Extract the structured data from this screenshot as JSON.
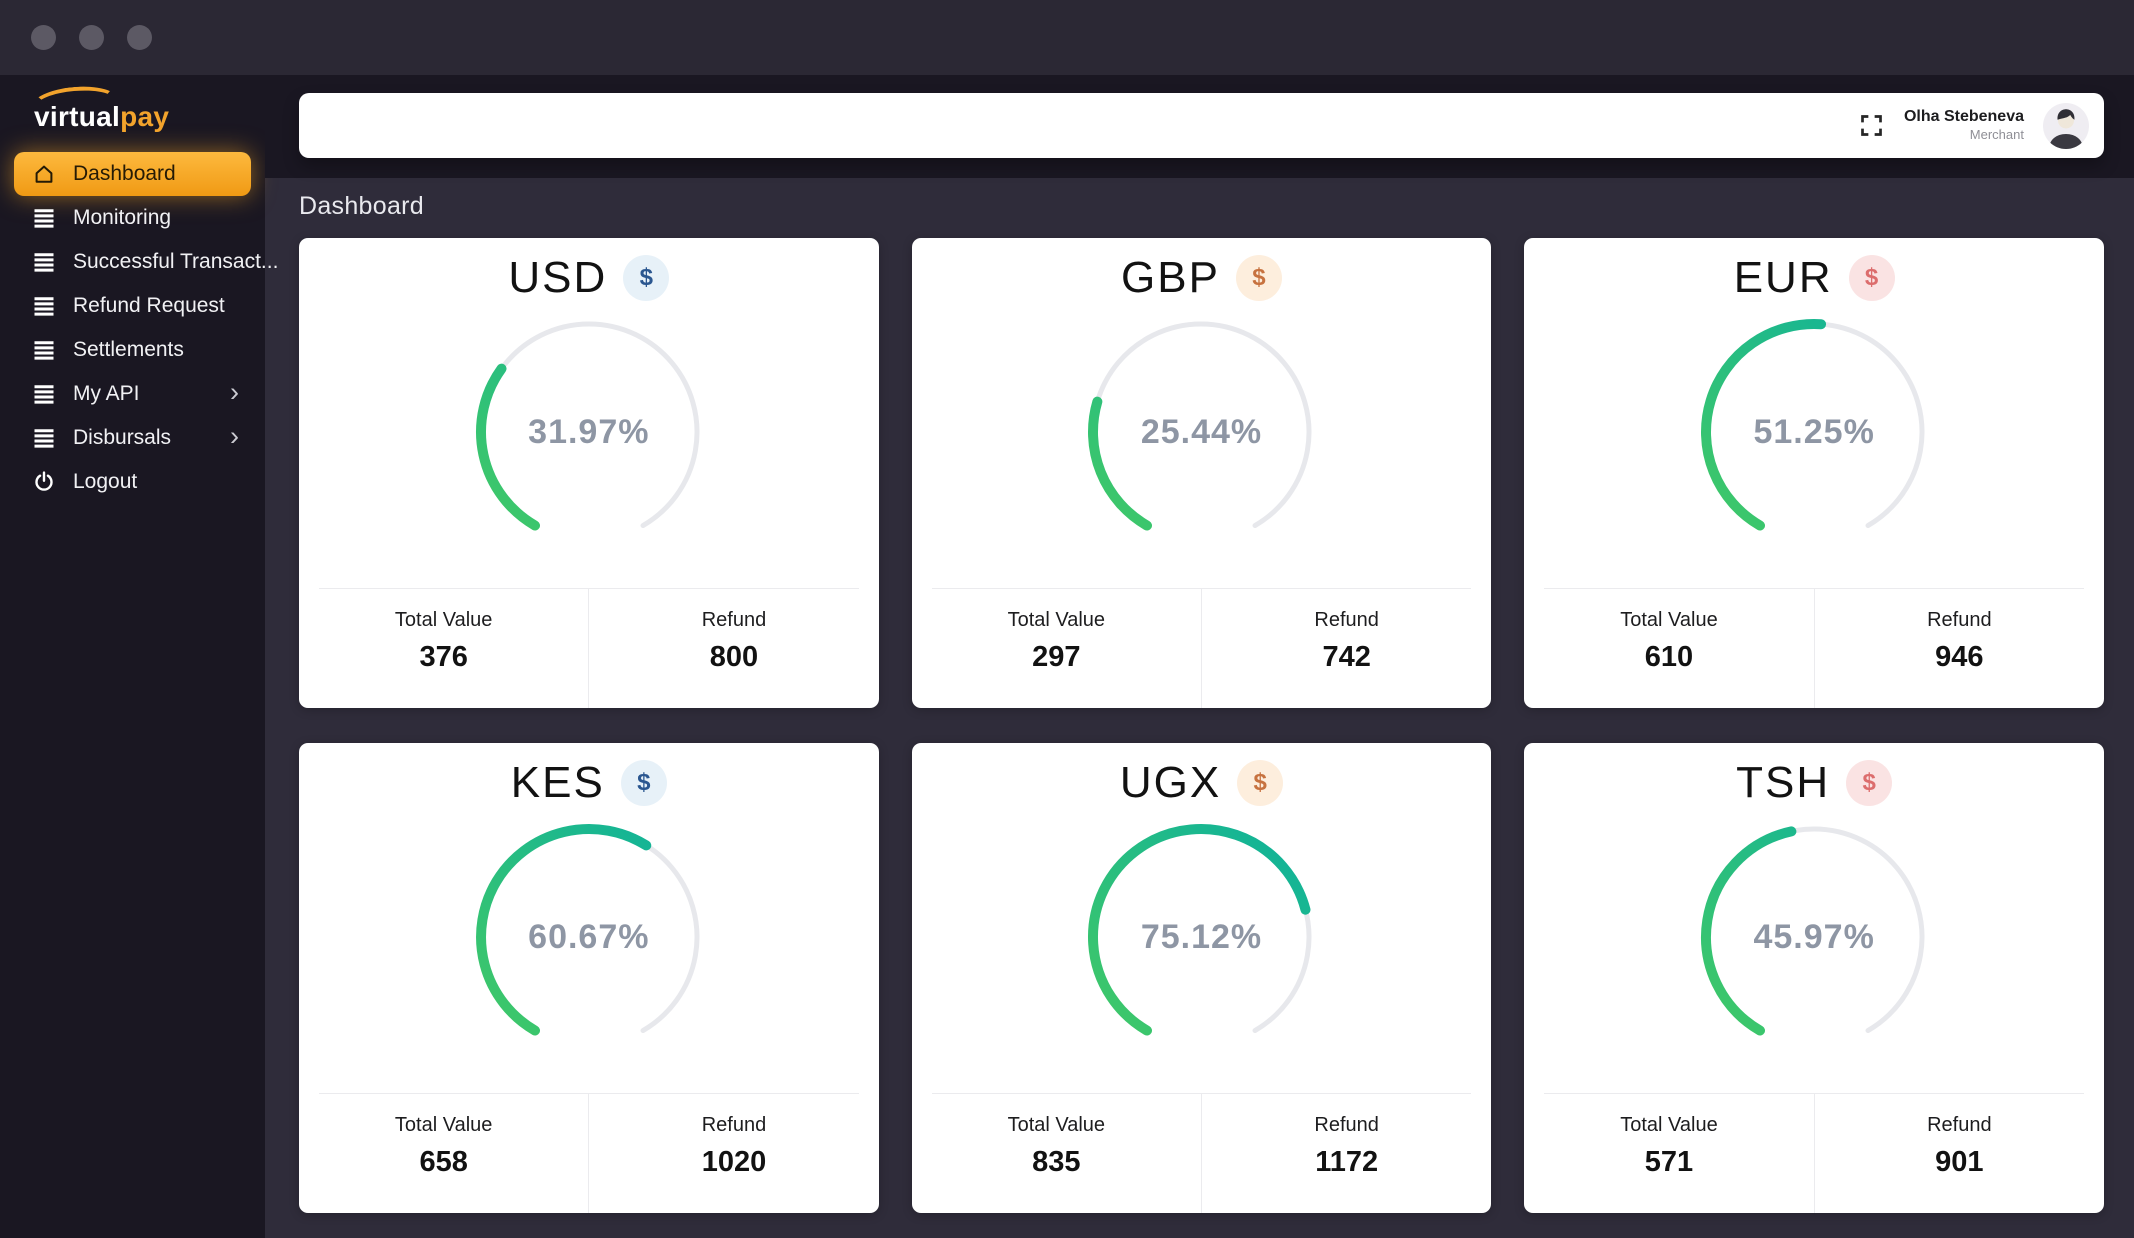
{
  "titlebar": {
    "controls": [
      "minimize",
      "maximize",
      "close"
    ]
  },
  "brand": {
    "name_left": "virtual",
    "name_right": "pay",
    "accent": "#f2a32c"
  },
  "sidebar": {
    "items": [
      {
        "label": "Dashboard",
        "icon": "home",
        "active": true,
        "chevron": false
      },
      {
        "label": "Monitoring",
        "icon": "menu-lines",
        "active": false,
        "chevron": false
      },
      {
        "label": "Successful Transact...",
        "icon": "menu-lines",
        "active": false,
        "chevron": false
      },
      {
        "label": "Refund Request",
        "icon": "menu-lines",
        "active": false,
        "chevron": false
      },
      {
        "label": "Settlements",
        "icon": "menu-lines",
        "active": false,
        "chevron": false
      },
      {
        "label": "My API",
        "icon": "menu-lines",
        "active": false,
        "chevron": true
      },
      {
        "label": "Disbursals",
        "icon": "menu-lines",
        "active": false,
        "chevron": true
      },
      {
        "label": "Logout",
        "icon": "power",
        "active": false,
        "chevron": false
      }
    ]
  },
  "topbar": {
    "user_name": "Olha Stebeneva",
    "user_role": "Merchant"
  },
  "page": {
    "heading": "Dashboard"
  },
  "labels": {
    "total": "Total Value",
    "refund": "Refund",
    "currency_symbol": "$",
    "chevron": "›"
  },
  "gauge": {
    "start_deg": 120,
    "span_deg": 300,
    "track_color": "#e7e8ec",
    "progress_from": "#45ca62",
    "progress_to": "#0fb29b",
    "percent_text_color": "#8e96a4"
  },
  "chart_data": [
    {
      "type": "gauge",
      "title": "USD",
      "percent": 31.97,
      "total_value": 376,
      "refund": 800
    },
    {
      "type": "gauge",
      "title": "GBP",
      "percent": 25.44,
      "total_value": 297,
      "refund": 742
    },
    {
      "type": "gauge",
      "title": "EUR",
      "percent": 51.25,
      "total_value": 610,
      "refund": 946
    },
    {
      "type": "gauge",
      "title": "KES",
      "percent": 60.67,
      "total_value": 658,
      "refund": 1020
    },
    {
      "type": "gauge",
      "title": "UGX",
      "percent": 75.12,
      "total_value": 835,
      "refund": 1172
    },
    {
      "type": "gauge",
      "title": "TSH",
      "percent": 45.97,
      "total_value": 571,
      "refund": 901
    }
  ],
  "cards": [
    {
      "currency": "USD",
      "percent": 31.97,
      "percent_label": "31.97%",
      "total_value": "376",
      "refund": "800",
      "badge_bg": "#e7f1f8",
      "badge_fg": "#2b5790"
    },
    {
      "currency": "GBP",
      "percent": 25.44,
      "percent_label": "25.44%",
      "total_value": "297",
      "refund": "742",
      "badge_bg": "#fdeedd",
      "badge_fg": "#c7723f"
    },
    {
      "currency": "EUR",
      "percent": 51.25,
      "percent_label": "51.25%",
      "total_value": "610",
      "refund": "946",
      "badge_bg": "#fae3e3",
      "badge_fg": "#dc6d6d"
    },
    {
      "currency": "KES",
      "percent": 60.67,
      "percent_label": "60.67%",
      "total_value": "658",
      "refund": "1020",
      "badge_bg": "#e7f1f8",
      "badge_fg": "#2b5790"
    },
    {
      "currency": "UGX",
      "percent": 75.12,
      "percent_label": "75.12%",
      "total_value": "835",
      "refund": "1172",
      "badge_bg": "#fdeedd",
      "badge_fg": "#c7723f"
    },
    {
      "currency": "TSH",
      "percent": 45.97,
      "percent_label": "45.97%",
      "total_value": "571",
      "refund": "901",
      "badge_bg": "#fae3e3",
      "badge_fg": "#dc6d6d"
    }
  ]
}
